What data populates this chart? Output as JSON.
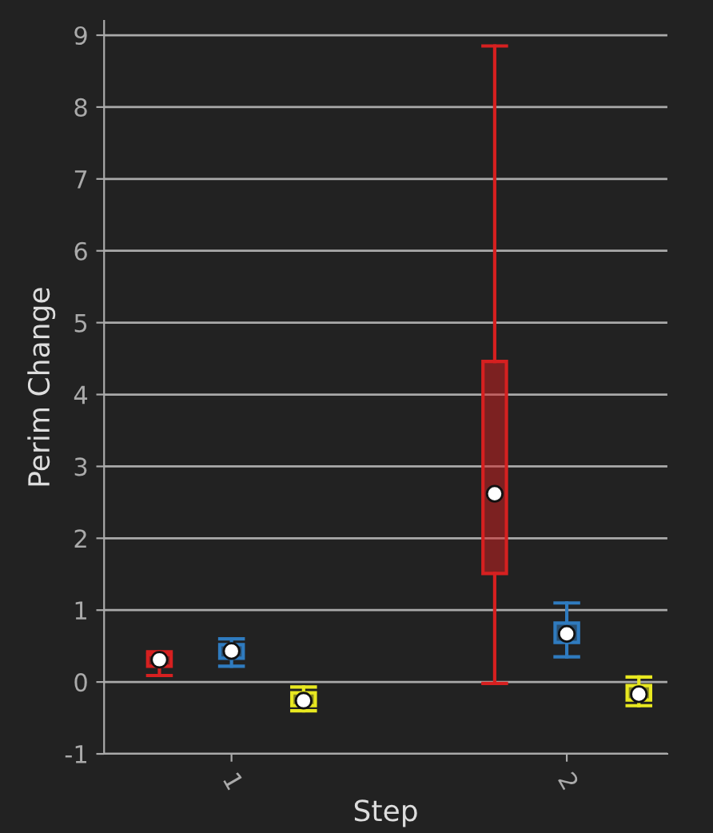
{
  "chart_data": {
    "type": "box",
    "xlabel": "Step",
    "ylabel": "Perim Change",
    "categories": [
      "1",
      "2"
    ],
    "ylim": [
      -1,
      9.2
    ],
    "yticks": [
      -1,
      0,
      1,
      2,
      3,
      4,
      5,
      6,
      7,
      8,
      9
    ],
    "grid": "y",
    "series": [
      {
        "color": "#d62020",
        "boxes": [
          {
            "low": 0.09,
            "q1": 0.22,
            "median": 0.31,
            "q3": 0.38,
            "high": 0.42
          },
          {
            "low": -0.02,
            "q1": 1.51,
            "median": 2.62,
            "q3": 4.46,
            "high": 8.85
          }
        ]
      },
      {
        "color": "#2f7bbf",
        "boxes": [
          {
            "low": 0.22,
            "q1": 0.33,
            "median": 0.43,
            "q3": 0.52,
            "high": 0.6
          },
          {
            "low": 0.35,
            "q1": 0.55,
            "median": 0.67,
            "q3": 0.82,
            "high": 1.1
          }
        ]
      },
      {
        "color": "#e8e820",
        "boxes": [
          {
            "low": -0.4,
            "q1": -0.33,
            "median": -0.26,
            "q3": -0.15,
            "high": -0.07
          },
          {
            "low": -0.33,
            "q1": -0.25,
            "median": -0.17,
            "q3": -0.05,
            "high": 0.07
          }
        ]
      }
    ]
  }
}
